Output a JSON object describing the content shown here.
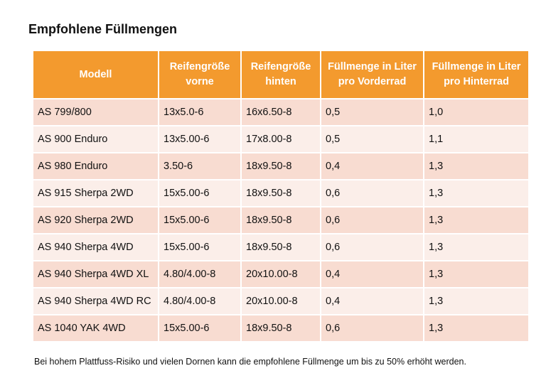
{
  "title": "Empfohlene Füllmengen",
  "table": {
    "header": [
      "Modell",
      "Reifengröße\nvorne",
      "Reifengröße\nhinten",
      "Füllmenge in Liter\npro Vorderrad",
      "Füllmenge in Liter\npro Hinterrad"
    ],
    "rows": [
      [
        "AS 799/800",
        "13x5.0-6",
        "16x6.50-8",
        "0,5",
        "1,0"
      ],
      [
        "AS 900 Enduro",
        "13x5.00-6",
        "17x8.00-8",
        "0,5",
        "1,1"
      ],
      [
        "AS 980 Enduro",
        "3.50-6",
        "18x9.50-8",
        "0,4",
        "1,3"
      ],
      [
        "AS 915 Sherpa 2WD",
        "15x5.00-6",
        "18x9.50-8",
        "0,6",
        "1,3"
      ],
      [
        "AS 920 Sherpa 2WD",
        "15x5.00-6",
        "18x9.50-8",
        "0,6",
        "1,3"
      ],
      [
        "AS 940 Sherpa 4WD",
        "15x5.00-6",
        "18x9.50-8",
        "0,6",
        "1,3"
      ],
      [
        "AS 940 Sherpa 4WD XL",
        "4.80/4.00-8",
        "20x10.00-8",
        "0,4",
        "1,3"
      ],
      [
        "AS 940 Sherpa 4WD RC",
        "4.80/4.00-8",
        "20x10.00-8",
        "0,4",
        "1,3"
      ],
      [
        "AS 1040 YAK 4WD",
        "15x5.00-6",
        "18x9.50-8",
        "0,6",
        "1,3"
      ]
    ]
  },
  "footnote": "Bei hohem Plattfuss-Risiko und vielen Dornen kann die empfohlene Füllmenge um bis zu 50% erhöht werden."
}
